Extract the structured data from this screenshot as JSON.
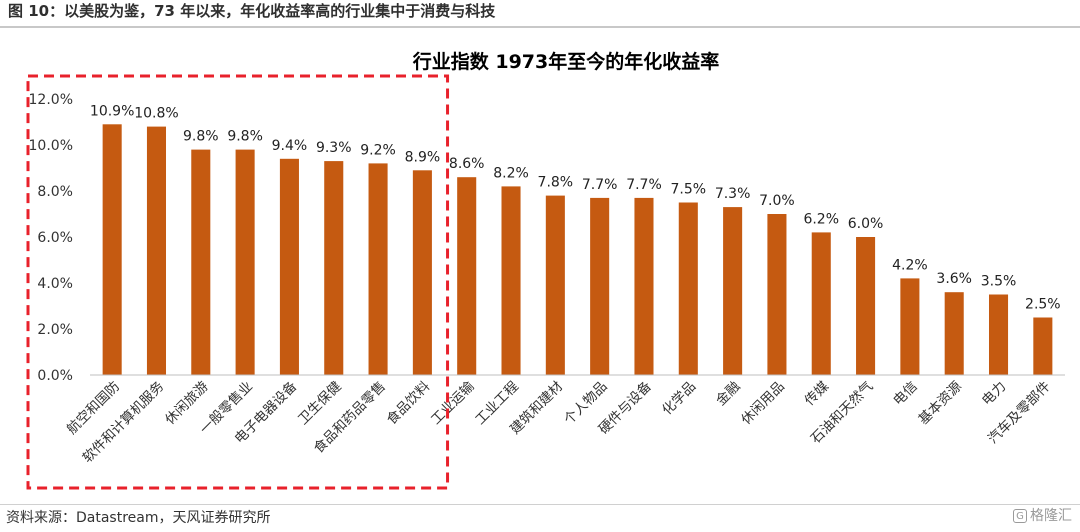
{
  "header": {
    "title": "图 10：以美股为鉴，73 年以来，年化收益率高的行业集中于消费与科技"
  },
  "source": "资料来源：Datastream，天风证券研究所",
  "watermark": {
    "mark": "G",
    "text": "格隆汇"
  },
  "colors": {
    "bar": "#C55A11",
    "highlight_box": "#E8212B",
    "rule": "#C8C8C8"
  },
  "chart_data": {
    "type": "bar",
    "title": "行业指数 1973年至今的年化收益率",
    "categories": [
      "航空和国防",
      "软件和计算机服务",
      "休闲旅游",
      "一般零售业",
      "电子电器设备",
      "卫生保健",
      "食品和药品零售",
      "食品饮料",
      "工业运输",
      "工业工程",
      "建筑和建材",
      "个人物品",
      "硬件与设备",
      "化学品",
      "金融",
      "休闲用品",
      "传媒",
      "石油和天然气",
      "电信",
      "基本资源",
      "电力",
      "汽车及零部件"
    ],
    "values": [
      10.9,
      10.8,
      9.8,
      9.8,
      9.4,
      9.3,
      9.2,
      8.9,
      8.6,
      8.2,
      7.8,
      7.7,
      7.7,
      7.5,
      7.3,
      7.0,
      6.2,
      6.0,
      4.2,
      3.6,
      3.5,
      2.5
    ],
    "ylim": [
      0,
      12
    ],
    "yticks": [
      "0.0%",
      "2.0%",
      "4.0%",
      "6.0%",
      "8.0%",
      "10.0%",
      "12.0%"
    ],
    "value_format": "percent_1dp",
    "highlight": {
      "style": "dashed-box",
      "from_category": 0,
      "to_category": 7
    },
    "grid": false,
    "legend": "none"
  }
}
